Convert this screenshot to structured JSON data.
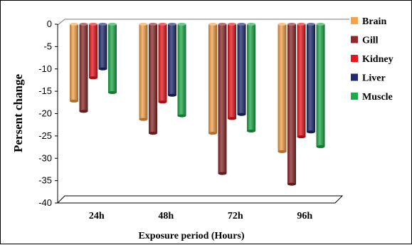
{
  "chart_data": {
    "type": "bar",
    "categories": [
      "24h",
      "48h",
      "72h",
      "96h"
    ],
    "series": [
      {
        "name": "Brain",
        "color": "#F5A24A",
        "values": [
          -17.2,
          -21.3,
          -24.4,
          -28.5
        ]
      },
      {
        "name": "Gill",
        "color": "#8B2A2A",
        "values": [
          -19.5,
          -24.4,
          -33.4,
          -35.8
        ]
      },
      {
        "name": "Kidney",
        "color": "#E8161C",
        "values": [
          -12.0,
          -17.4,
          -21.1,
          -25.2
        ]
      },
      {
        "name": "Liver",
        "color": "#1F2A6E",
        "values": [
          -10.0,
          -15.9,
          -20.2,
          -24.1
        ]
      },
      {
        "name": "Muscle",
        "color": "#1FAA4A",
        "values": [
          -15.3,
          -20.5,
          -23.9,
          -27.4
        ]
      }
    ],
    "title": "",
    "xlabel": "Exposure period (Hours)",
    "ylabel": "Persent change",
    "ylim": [
      -40,
      0
    ],
    "yticks": [
      0,
      -5,
      -10,
      -15,
      -20,
      -25,
      -30,
      -35,
      -40
    ],
    "grid": false,
    "legend_position": "right"
  }
}
